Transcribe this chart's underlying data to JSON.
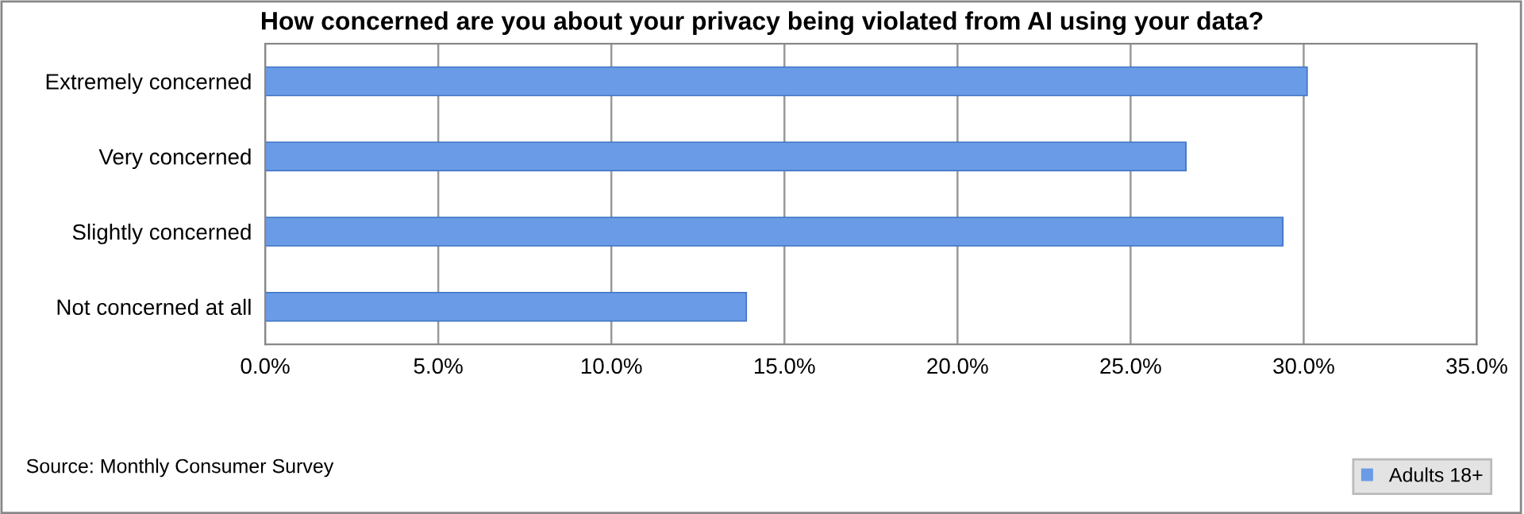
{
  "chart_data": {
    "type": "bar",
    "orientation": "horizontal",
    "title": "How concerned are you about your privacy being violated from AI using your data?",
    "categories": [
      "Extremely concerned",
      "Very concerned",
      "Slightly concerned",
      "Not concerned at all"
    ],
    "series": [
      {
        "name": "Adults 18+",
        "color": "#6a9be6",
        "values": [
          30.1,
          26.6,
          29.4,
          13.9
        ]
      }
    ],
    "xlim": [
      0,
      35
    ],
    "xticks": [
      {
        "value": 0,
        "label": "0.0%"
      },
      {
        "value": 5,
        "label": "5.0%"
      },
      {
        "value": 10,
        "label": "10.0%"
      },
      {
        "value": 15,
        "label": "15.0%"
      },
      {
        "value": 20,
        "label": "20.0%"
      },
      {
        "value": 25,
        "label": "25.0%"
      },
      {
        "value": 30,
        "label": "30.0%"
      },
      {
        "value": 35,
        "label": "35.0%"
      }
    ],
    "grid": "x",
    "legend": "bottom right",
    "annotations": [
      "Source: Monthly Consumer Survey"
    ]
  }
}
